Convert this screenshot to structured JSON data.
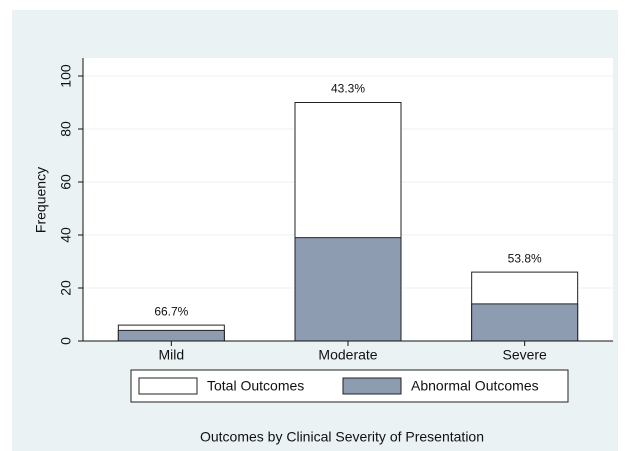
{
  "chart_data": {
    "type": "bar",
    "overlay": true,
    "title": "Outcomes by Clinical Severity of Presentation",
    "y_label": "Frequency",
    "categories": [
      "Mild",
      "Moderate",
      "Severe"
    ],
    "series": [
      {
        "name": "Total Outcomes",
        "color": "#ffffff",
        "values": [
          6,
          90,
          26
        ]
      },
      {
        "name": "Abnormal Outcomes",
        "color": "#8e9cb1",
        "values": [
          4,
          39,
          14
        ]
      }
    ],
    "bar_labels": [
      "66.7%",
      "43.3%",
      "53.8%"
    ],
    "ylim": [
      0,
      100
    ],
    "yticks": [
      0,
      20,
      40,
      60,
      80,
      100
    ],
    "grid": true
  }
}
